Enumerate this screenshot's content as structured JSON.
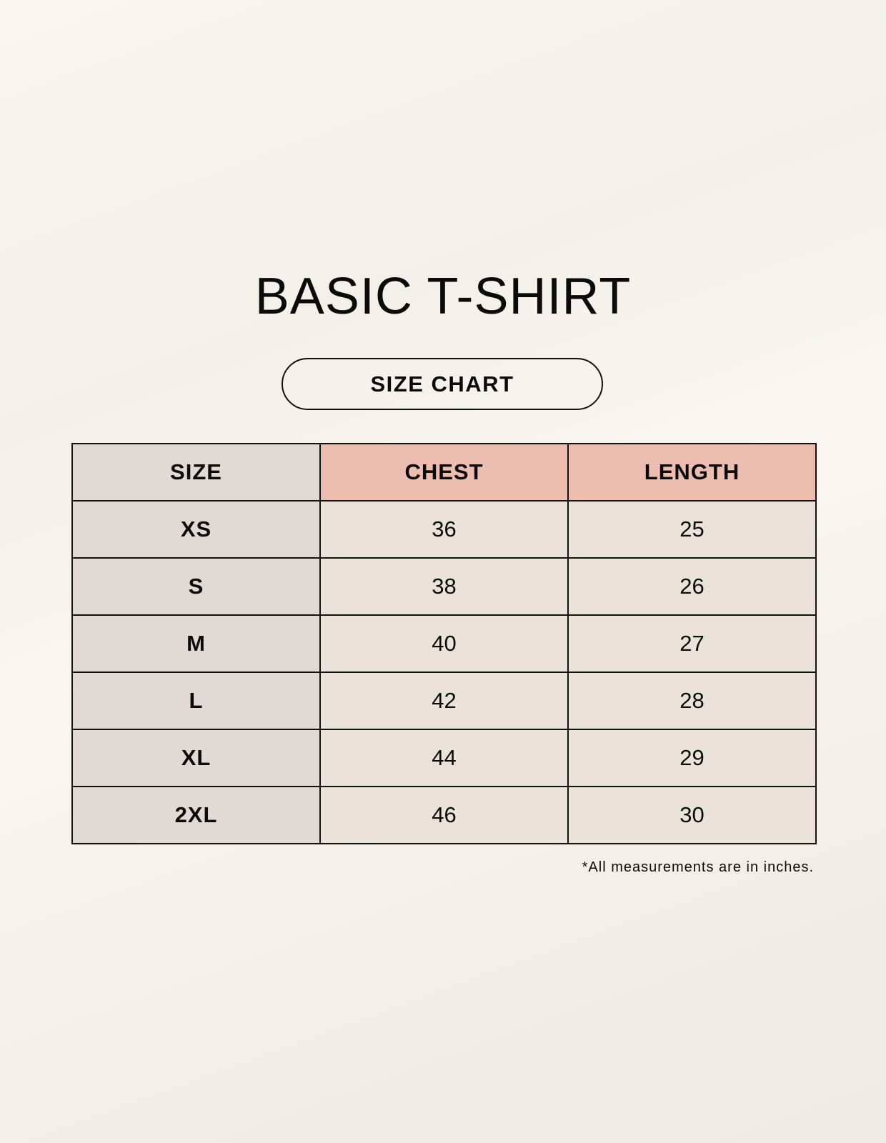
{
  "title": "BASIC T-SHIRT",
  "subtitle": "SIZE CHART",
  "table": {
    "headers": [
      "SIZE",
      "CHEST",
      "LENGTH"
    ],
    "rows": [
      [
        "XS",
        "36",
        "25"
      ],
      [
        "S",
        "38",
        "26"
      ],
      [
        "M",
        "40",
        "27"
      ],
      [
        "L",
        "42",
        "28"
      ],
      [
        "XL",
        "44",
        "29"
      ],
      [
        "2XL",
        "46",
        "30"
      ]
    ]
  },
  "footnote": "*All measurements are in inches.",
  "colors": {
    "size_column": "#e0d9d4",
    "header_accent": "#edbdb0",
    "cell": "#ebe3da"
  }
}
